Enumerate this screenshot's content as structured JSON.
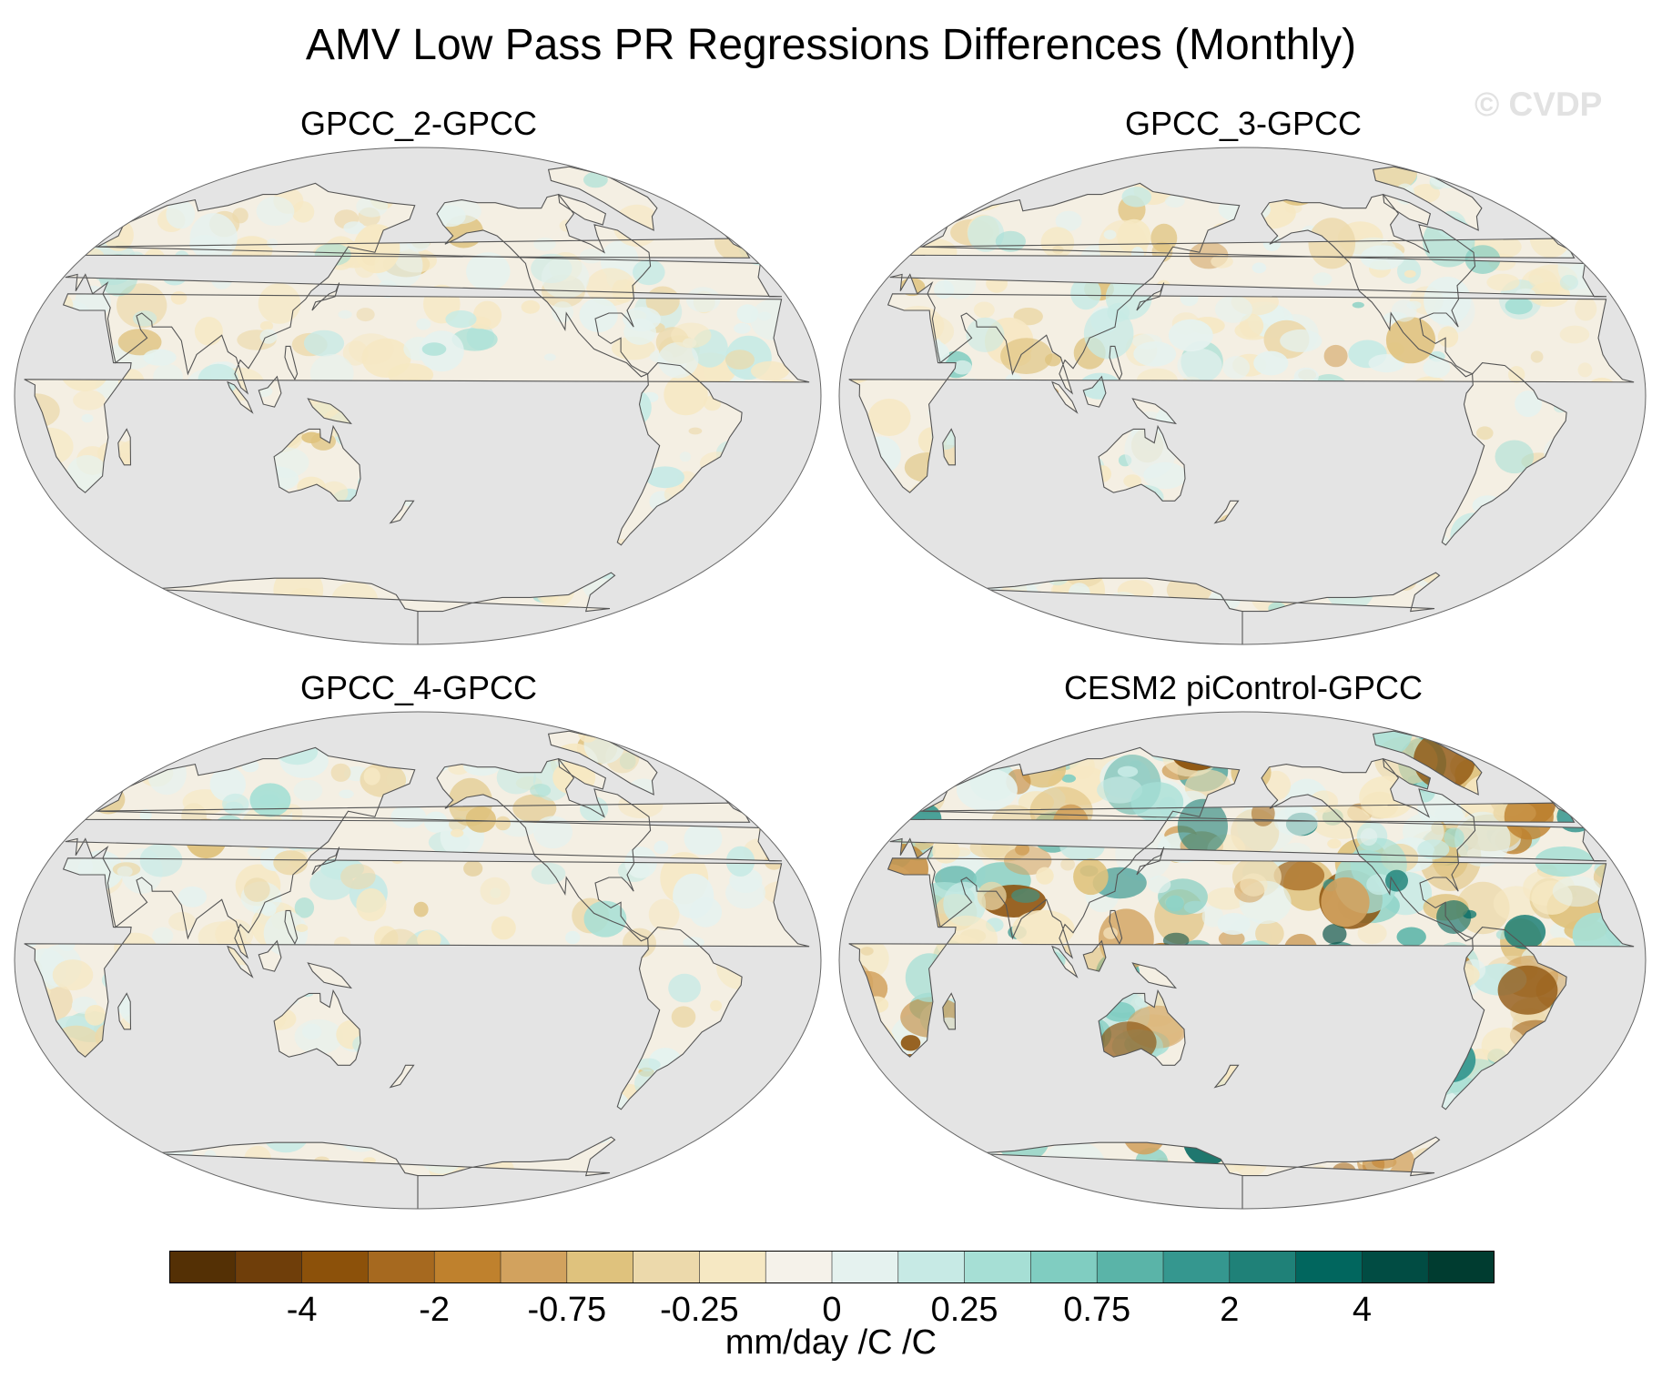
{
  "title": "AMV Low Pass PR Regressions Differences (Monthly)",
  "watermark": "© CVDP",
  "panels": [
    {
      "title": "GPCC_2-GPCC",
      "intensity": 0.35
    },
    {
      "title": "GPCC_3-GPCC",
      "intensity": 0.4
    },
    {
      "title": "GPCC_4-GPCC",
      "intensity": 0.35
    },
    {
      "title": "CESM2 piControl-GPCC",
      "intensity": 1.0
    }
  ],
  "colorbar": {
    "colors": [
      "#543005",
      "#6f3e0a",
      "#8c510a",
      "#a6691f",
      "#bf812d",
      "#d2a25e",
      "#dfc27d",
      "#ecd9ab",
      "#f6e8c3",
      "#f5f2ea",
      "#e5f2ef",
      "#c7eae5",
      "#a6dfd5",
      "#80cdc1",
      "#5ab4a8",
      "#35978f",
      "#1f8178",
      "#01665e",
      "#014c43",
      "#003c30"
    ],
    "labels": [
      "-4",
      "-2",
      "-0.75",
      "-0.25",
      "0",
      "0.25",
      "0.75",
      "2",
      "4"
    ],
    "units": "mm/day /C /C"
  },
  "colors": {
    "ocean": "#e4e4e4",
    "land": "#f4efe3",
    "coast": "#555555"
  }
}
